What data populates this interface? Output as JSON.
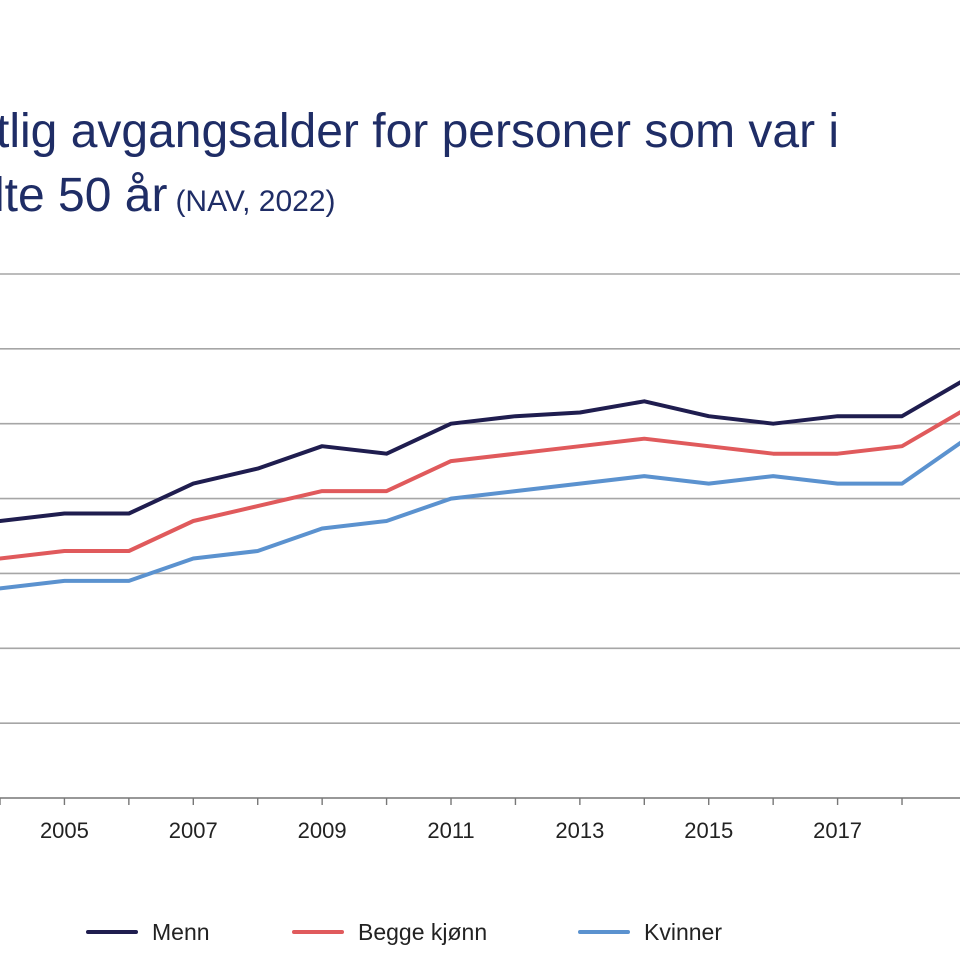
{
  "title": {
    "line1": "tlig avgangsalder for personer som var i",
    "line2": "lte 50 år",
    "source": "(NAV, 2022)"
  },
  "legend": {
    "menn": "Menn",
    "begge": "Begge kjønn",
    "kvinner": "Kvinner"
  },
  "colors": {
    "title": "#1f2d66",
    "menn": "#1f1d4f",
    "begge": "#e05a5c",
    "kvinner": "#5b92cf",
    "grid": "#a6a6a6"
  },
  "chart_data": {
    "type": "line",
    "title": "tlig avgangsalder for personer som var i lte 50 år (NAV, 2022)",
    "xlabel": "",
    "ylabel": "",
    "x": [
      2004,
      2005,
      2006,
      2007,
      2008,
      2009,
      2010,
      2011,
      2012,
      2013,
      2014,
      2015,
      2016,
      2017,
      2018,
      2019
    ],
    "xlim": [
      2004,
      2018.9
    ],
    "x_tick_labels": [
      "2005",
      "2007",
      "2009",
      "2011",
      "2013",
      "2015",
      "2017"
    ],
    "x_tick_values": [
      2005,
      2007,
      2009,
      2011,
      2013,
      2015,
      2017
    ],
    "ylim": [
      0,
      7
    ],
    "grid": true,
    "legend_position": "bottom",
    "series": [
      {
        "name": "Menn",
        "values": [
          3.7,
          3.8,
          3.8,
          4.2,
          4.4,
          4.7,
          4.6,
          5.0,
          5.1,
          5.15,
          5.3,
          5.1,
          5.0,
          5.1,
          5.1,
          5.6
        ]
      },
      {
        "name": "Begge kjønn",
        "values": [
          3.2,
          3.3,
          3.3,
          3.7,
          3.9,
          4.1,
          4.1,
          4.5,
          4.6,
          4.7,
          4.8,
          4.7,
          4.6,
          4.6,
          4.7,
          5.2
        ]
      },
      {
        "name": "Kvinner",
        "values": [
          2.8,
          2.9,
          2.9,
          3.2,
          3.3,
          3.6,
          3.7,
          4.0,
          4.1,
          4.2,
          4.3,
          4.2,
          4.3,
          4.2,
          4.2,
          4.8
        ]
      }
    ]
  }
}
